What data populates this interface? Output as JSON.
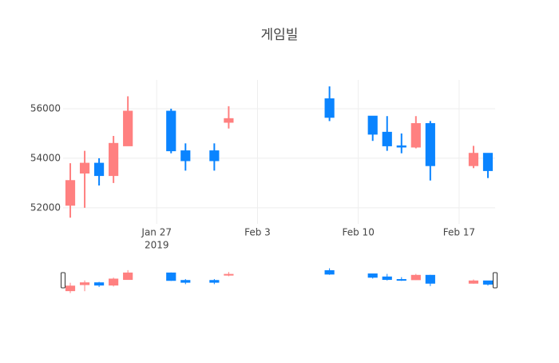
{
  "chart_data": {
    "type": "candlestick",
    "title": "게임빌",
    "x": [
      "2019-01-21",
      "2019-01-22",
      "2019-01-23",
      "2019-01-24",
      "2019-01-25",
      "2019-01-28",
      "2019-01-29",
      "2019-01-31",
      "2019-02-01",
      "2019-02-08",
      "2019-02-11",
      "2019-02-12",
      "2019-02-13",
      "2019-02-14",
      "2019-02-15",
      "2019-02-18",
      "2019-02-19"
    ],
    "open": [
      52100,
      53400,
      53800,
      53300,
      54500,
      55900,
      54300,
      54300,
      55450,
      56400,
      55700,
      55050,
      54500,
      54450,
      55400,
      53700,
      54200
    ],
    "high": [
      53800,
      54300,
      54000,
      54900,
      56500,
      56000,
      54600,
      54600,
      56100,
      56900,
      55700,
      55700,
      55000,
      55700,
      55500,
      54500,
      54200
    ],
    "low": [
      51600,
      52000,
      52900,
      53000,
      54500,
      54200,
      53500,
      53500,
      55200,
      55500,
      54700,
      54300,
      54200,
      54400,
      53100,
      53600,
      53200
    ],
    "close": [
      53100,
      53800,
      53300,
      54600,
      55900,
      54300,
      53900,
      53900,
      55600,
      55650,
      54970,
      54500,
      54450,
      55400,
      53700,
      54200,
      53500
    ],
    "increasing_color": "#ff8080",
    "decreasing_color": "#0a84ff",
    "ylim": [
      51350,
      57160
    ],
    "yticks": [
      52000,
      54000,
      56000
    ],
    "xlim": [
      "2019-01-20T12:00",
      "2019-02-19T12:00"
    ],
    "xticks": [
      {
        "value": "2019-01-27",
        "label": "Jan 27"
      },
      {
        "value": "2019-02-03",
        "label": "Feb 3"
      },
      {
        "value": "2019-02-10",
        "label": "Feb 10"
      },
      {
        "value": "2019-02-17",
        "label": "Feb 17"
      }
    ],
    "x_year": "2019",
    "grid": true,
    "rangeslider": true
  }
}
